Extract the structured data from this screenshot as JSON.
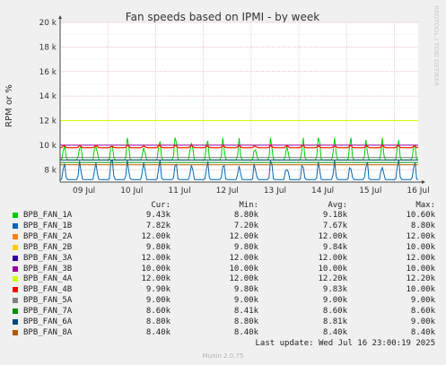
{
  "chart_data": {
    "type": "line",
    "title": "Fan speeds based on IPMI - by week",
    "ylabel": "RPM or %",
    "watermark": "RRDTOOL / TOBI OETIKER",
    "ylim": [
      7000,
      20000
    ],
    "yticks": [
      {
        "v": 8000,
        "label": "8 k"
      },
      {
        "v": 10000,
        "label": "10 k"
      },
      {
        "v": 12000,
        "label": "12 k"
      },
      {
        "v": 14000,
        "label": "14 k"
      },
      {
        "v": 16000,
        "label": "16 k"
      },
      {
        "v": 18000,
        "label": "18 k"
      },
      {
        "v": 20000,
        "label": "20 k"
      }
    ],
    "xticks": [
      "09 Jul",
      "10 Jul",
      "11 Jul",
      "12 Jul",
      "13 Jul",
      "14 Jul",
      "15 Jul",
      "16 Jul"
    ],
    "series": [
      {
        "name": "BPB_FAN_1A",
        "color": "#00cc00",
        "cur": "9.43k",
        "min": "8.80k",
        "avg": "9.18k",
        "max": "10.60k",
        "base": 8800,
        "peak": 10600
      },
      {
        "name": "BPB_FAN_1B",
        "color": "#0066b3",
        "cur": "7.82k",
        "min": "7.20k",
        "avg": "7.67k",
        "max": "8.80k",
        "base": 7200,
        "peak": 8800
      },
      {
        "name": "BPB_FAN_2A",
        "color": "#ff8000",
        "cur": "12.00k",
        "min": "12.00k",
        "avg": "12.00k",
        "max": "12.00k",
        "base": 12000,
        "peak": 12000
      },
      {
        "name": "BPB_FAN_2B",
        "color": "#ffcc00",
        "cur": "9.80k",
        "min": "9.80k",
        "avg": "9.84k",
        "max": "10.00k",
        "base": 9800,
        "peak": 10000
      },
      {
        "name": "BPB_FAN_3A",
        "color": "#330099",
        "cur": "12.00k",
        "min": "12.00k",
        "avg": "12.00k",
        "max": "12.00k",
        "base": 12000,
        "peak": 12000
      },
      {
        "name": "BPB_FAN_3B",
        "color": "#990099",
        "cur": "10.00k",
        "min": "10.00k",
        "avg": "10.00k",
        "max": "10.00k",
        "base": 10000,
        "peak": 10000
      },
      {
        "name": "BPB_FAN_4A",
        "color": "#ccff00",
        "cur": "12.00k",
        "min": "12.00k",
        "avg": "12.20k",
        "max": "12.20k",
        "base": 12000,
        "peak": 12000
      },
      {
        "name": "BPB_FAN_4B",
        "color": "#ff0000",
        "cur": "9.90k",
        "min": "9.80k",
        "avg": "9.83k",
        "max": "10.00k",
        "base": 9800,
        "peak": 10000
      },
      {
        "name": "BPB_FAN_5A",
        "color": "#808080",
        "cur": "9.00k",
        "min": "9.00k",
        "avg": "9.00k",
        "max": "9.00k",
        "base": 9000,
        "peak": 9000
      },
      {
        "name": "BPB_FAN_7A",
        "color": "#008f00",
        "cur": "8.60k",
        "min": "8.41k",
        "avg": "8.60k",
        "max": "8.60k",
        "base": 8600,
        "peak": 8600
      },
      {
        "name": "BPB_FAN_6A",
        "color": "#00487d",
        "cur": "8.80k",
        "min": "8.80k",
        "avg": "8.81k",
        "max": "9.00k",
        "base": 8800,
        "peak": 8800
      },
      {
        "name": "BPB_FAN_8A",
        "color": "#b35a00",
        "cur": "8.40k",
        "min": "8.40k",
        "avg": "8.40k",
        "max": "8.40k",
        "base": 8400,
        "peak": 8400
      }
    ]
  },
  "legend_headers": {
    "cur": "Cur:",
    "min": "Min:",
    "avg": "Avg:",
    "max": "Max:"
  },
  "footer": {
    "last_update": "Last update: Wed Jul 16 23:00:19 2025",
    "version": "Munin 2.0.75"
  }
}
